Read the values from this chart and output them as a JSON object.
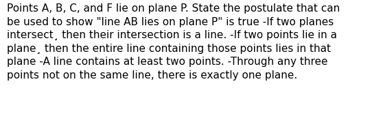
{
  "text_line1": "Points A, B, C, and F lie on plane P. State the postulate that can",
  "text_line2": "be used to show \"line AB lies on plane P\" is true -If two planes",
  "text_line3": "intersect¸ then their intersection is a line. -If two points lie in a",
  "text_line4": "plane¸ then the entire line containing those points lies in that",
  "text_line5": "plane -A line contains at least two points. -Through any three",
  "text_line6": "points not on the same line, there is exactly one plane.",
  "background_color": "#ffffff",
  "text_color": "#000000",
  "font_size": 11.0,
  "fig_width": 5.58,
  "fig_height": 1.67,
  "dpi": 100
}
